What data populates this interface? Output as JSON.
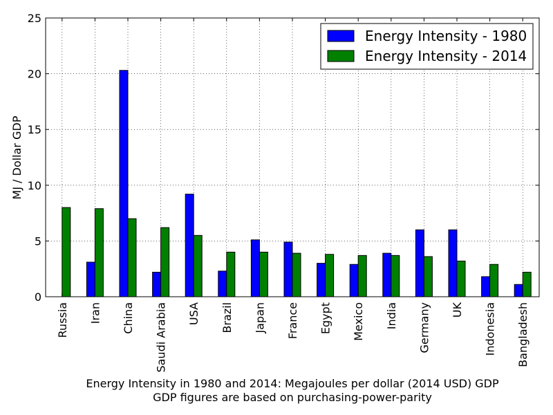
{
  "chart_data": {
    "type": "bar",
    "categories": [
      "Russia",
      "Iran",
      "China",
      "Saudi Arabia",
      "USA",
      "Brazil",
      "Japan",
      "France",
      "Egypt",
      "Mexico",
      "India",
      "Germany",
      "UK",
      "Indonesia",
      "Bangladesh"
    ],
    "series": [
      {
        "name": "Energy Intensity - 1980",
        "color": "#0000ff",
        "values": [
          0,
          3.1,
          20.3,
          2.2,
          9.2,
          2.3,
          5.1,
          4.9,
          3.0,
          2.9,
          3.9,
          6.0,
          6.0,
          1.8,
          1.1
        ]
      },
      {
        "name": "Energy Intensity - 2014",
        "color": "#008000",
        "values": [
          8.0,
          7.9,
          7.0,
          6.2,
          5.5,
          4.0,
          4.0,
          3.9,
          3.8,
          3.7,
          3.7,
          3.6,
          3.2,
          2.9,
          2.2
        ]
      }
    ],
    "ylabel": "MJ / Dollar GDP",
    "ylim": [
      0,
      25
    ],
    "yticks": [
      0,
      5,
      10,
      15,
      20,
      25
    ],
    "caption_lines": [
      "Energy Intensity in 1980 and 2014: Megajoules per dollar (2014 USD) GDP",
      "GDP figures are based on purchasing-power-parity"
    ],
    "legend_position": "top-right",
    "grid": true
  }
}
